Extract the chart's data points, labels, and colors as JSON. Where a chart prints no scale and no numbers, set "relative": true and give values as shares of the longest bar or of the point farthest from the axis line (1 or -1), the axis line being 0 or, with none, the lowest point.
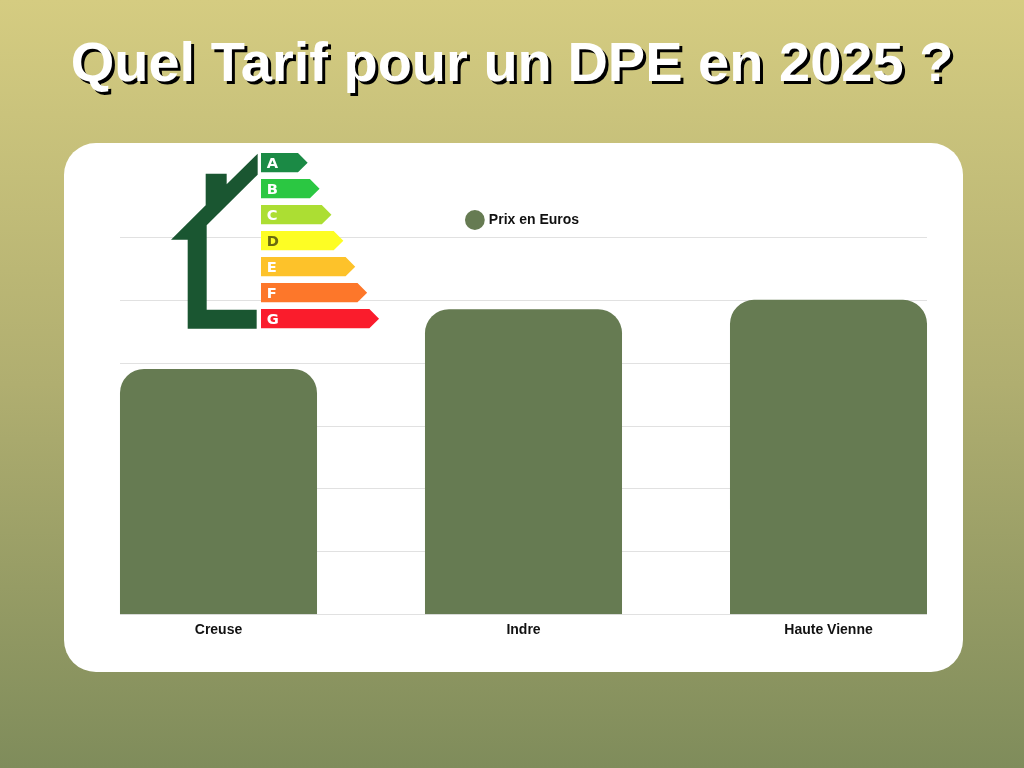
{
  "chart_data": {
    "type": "bar",
    "title": "Quel Tarif pour un DPE en 2025 ?",
    "categories": [
      "Creuse",
      "Indre",
      "Haute Vienne"
    ],
    "series": [
      {
        "name": "Prix en Euros",
        "color": "#667b52",
        "values": [
          0.78,
          0.97,
          1
        ]
      }
    ],
    "relative": true,
    "grid": "y",
    "legend": "top",
    "annotations": [
      "A",
      "B",
      "C",
      "D",
      "E",
      "F",
      "G"
    ]
  }
}
